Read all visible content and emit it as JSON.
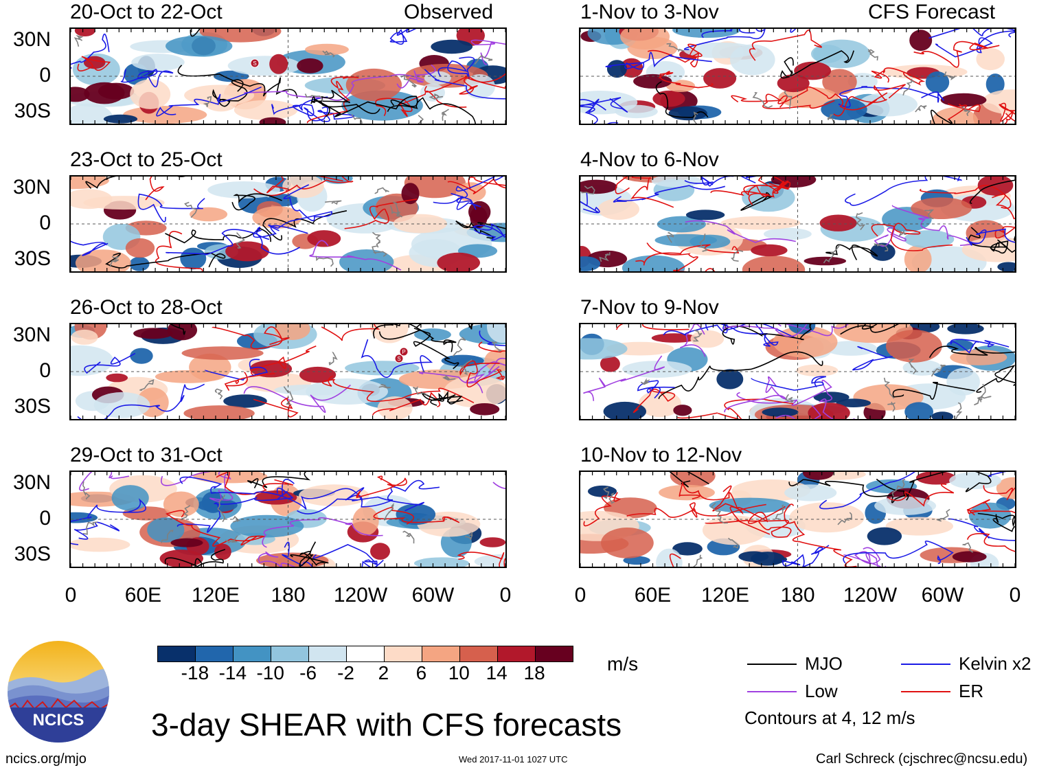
{
  "chart_data": {
    "type": "heatmap",
    "title": "3-day SHEAR with CFS forecasts",
    "observed_label": "Observed",
    "forecast_label": "CFS Forecast",
    "observed_panels": [
      "20-Oct to 22-Oct",
      "23-Oct to 25-Oct",
      "26-Oct to 28-Oct",
      "29-Oct to 31-Oct"
    ],
    "forecast_panels": [
      "1-Nov to 3-Nov",
      "4-Nov to 6-Nov",
      "7-Nov to 9-Nov",
      "10-Nov to 12-Nov"
    ],
    "y_ticks": [
      "30N",
      "0",
      "30S"
    ],
    "x_ticks": [
      "0",
      "60E",
      "120E",
      "180",
      "120W",
      "60W",
      "0"
    ],
    "colorbar": {
      "units": "m/s",
      "levels": [
        "-18",
        "-14",
        "-10",
        "-6",
        "-2",
        "2",
        "6",
        "10",
        "14",
        "18"
      ],
      "colors": [
        "#08306b",
        "#2166ac",
        "#4393c3",
        "#92c5de",
        "#d1e5f0",
        "#ffffff",
        "#fddbc7",
        "#f4a582",
        "#d6604d",
        "#b2182b",
        "#67001f"
      ]
    },
    "legend": {
      "items": [
        {
          "label": "MJO",
          "color": "#000000"
        },
        {
          "label": "Kelvin x2",
          "color": "#1a1ae6"
        },
        {
          "label": "Low",
          "color": "#a040e0"
        },
        {
          "label": "ER",
          "color": "#e01010"
        }
      ],
      "note": "Contours at 4, 12 m/s"
    },
    "storm_markers": [
      {
        "panel": 0,
        "labels": [
          "S"
        ]
      },
      {
        "panel": 2,
        "labels": [
          "P",
          "S"
        ]
      }
    ]
  },
  "footer": {
    "website": "ncics.org/mjo",
    "timestamp": "Wed 2017-11-01 1027 UTC",
    "author": "Carl Schreck (cjschrec@ncsu.edu)"
  },
  "logo": {
    "text": "NCICS"
  }
}
